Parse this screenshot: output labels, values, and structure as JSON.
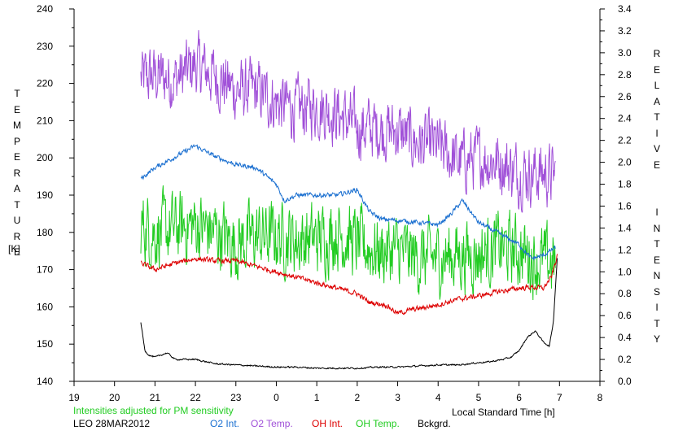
{
  "axes": {
    "left_label": "TEMPERATURE",
    "left_unit": "[K]",
    "right_label": "RELATIVE  INTENSITY",
    "x_label": "Local Standard Time [h]"
  },
  "footer": {
    "note": "Intensities adjusted for PM sensitivity",
    "station_date": "LEO 28MAR2012"
  },
  "legend": [
    {
      "label": "O2 Int.",
      "color": "#1a6fd0"
    },
    {
      "label": "O2 Temp.",
      "color": "#a050d8"
    },
    {
      "label": "OH Int.",
      "color": "#dd0000"
    },
    {
      "label": "OH Temp.",
      "color": "#22cc22"
    },
    {
      "label": "Bckgrd.",
      "color": "#000000"
    }
  ],
  "chart_data": {
    "type": "line",
    "x_ticks": [
      "19",
      "20",
      "21",
      "22",
      "23",
      "0",
      "1",
      "2",
      "3",
      "4",
      "5",
      "6",
      "7",
      "8"
    ],
    "y_left_ticks": [
      "140",
      "150",
      "160",
      "170",
      "180",
      "190",
      "200",
      "210",
      "220",
      "230",
      "240"
    ],
    "y_left_range": [
      140,
      240
    ],
    "y_right_ticks": [
      "0.0",
      "0.2",
      "0.4",
      "0.6",
      "0.8",
      "1.0",
      "1.2",
      "1.4",
      "1.6",
      "1.8",
      "2.0",
      "2.2",
      "2.4",
      "2.6",
      "2.8",
      "3.0",
      "3.2",
      "3.4"
    ],
    "y_right_range": [
      0.0,
      3.4
    ],
    "x_range_hours_since_19": [
      0,
      13
    ],
    "grid": false,
    "series": [
      {
        "name": "O2 Temp.",
        "axis": "left",
        "color": "#a050d8",
        "noise": 7,
        "x": [
          20.65,
          21,
          21.5,
          22,
          22.5,
          23,
          23.5,
          24,
          24.5,
          25,
          25.5,
          26,
          26.5,
          27,
          27.5,
          28,
          28.5,
          29,
          29.5,
          30,
          30.5,
          30.9
        ],
        "y": [
          221,
          222,
          221,
          225,
          222,
          218,
          218,
          215,
          213,
          214,
          212,
          208,
          208,
          207,
          204,
          203,
          199,
          200,
          199,
          196,
          196,
          195
        ]
      },
      {
        "name": "OH Temp.",
        "axis": "left",
        "color": "#22cc22",
        "noise": 8,
        "x": [
          20.65,
          21,
          21.5,
          22,
          22.5,
          23,
          23.5,
          24,
          24.5,
          25,
          25.5,
          26,
          26.5,
          27,
          27.5,
          28,
          28.5,
          29,
          29.5,
          30,
          30.5,
          30.9
        ],
        "y": [
          182,
          180,
          181,
          182,
          180,
          177,
          179,
          179,
          178,
          178,
          180,
          177,
          175,
          175,
          173,
          173,
          174,
          174,
          176,
          175,
          172,
          172
        ]
      },
      {
        "name": "O2 Int.",
        "axis": "right",
        "color": "#1a6fd0",
        "noise": 0.018,
        "x": [
          20.65,
          21,
          21.5,
          22,
          22.5,
          23,
          23.5,
          24,
          24.2,
          24.5,
          25,
          25.5,
          26,
          26.3,
          26.6,
          27,
          27.5,
          28,
          28.3,
          28.6,
          29,
          29.5,
          30,
          30.3,
          30.6,
          30.9
        ],
        "y": [
          1.85,
          1.95,
          2.05,
          2.15,
          2.05,
          1.98,
          1.95,
          1.8,
          1.65,
          1.7,
          1.7,
          1.7,
          1.75,
          1.55,
          1.48,
          1.47,
          1.45,
          1.43,
          1.52,
          1.65,
          1.45,
          1.35,
          1.25,
          1.12,
          1.15,
          1.22
        ]
      },
      {
        "name": "OH Int.",
        "axis": "right",
        "color": "#dd0000",
        "noise": 0.02,
        "x": [
          20.65,
          21,
          21.5,
          22,
          22.5,
          23,
          23.5,
          24,
          24.5,
          25,
          25.5,
          26,
          26.3,
          26.7,
          27,
          27.3,
          27.6,
          28,
          28.5,
          29,
          29.5,
          30,
          30.3,
          30.6,
          30.8,
          30.95
        ],
        "y": [
          1.08,
          1.02,
          1.08,
          1.12,
          1.1,
          1.1,
          1.05,
          1.0,
          0.95,
          0.9,
          0.85,
          0.8,
          0.72,
          0.7,
          0.62,
          0.65,
          0.67,
          0.7,
          0.75,
          0.78,
          0.82,
          0.85,
          0.86,
          0.85,
          0.95,
          1.15
        ]
      },
      {
        "name": "Bckgrd.",
        "axis": "right",
        "color": "#000000",
        "noise": 0.006,
        "x": [
          20.65,
          20.75,
          20.85,
          21,
          21.3,
          21.5,
          22,
          22.5,
          23,
          23.5,
          24,
          24.5,
          25,
          25.5,
          26,
          26.5,
          27,
          27.5,
          28,
          28.5,
          29,
          29.3,
          29.6,
          29.8,
          30,
          30.2,
          30.4,
          30.6,
          30.75,
          30.85,
          30.95
        ],
        "y": [
          0.54,
          0.28,
          0.24,
          0.22,
          0.26,
          0.2,
          0.2,
          0.16,
          0.15,
          0.14,
          0.13,
          0.13,
          0.12,
          0.12,
          0.12,
          0.13,
          0.13,
          0.14,
          0.15,
          0.15,
          0.17,
          0.18,
          0.2,
          0.22,
          0.28,
          0.4,
          0.46,
          0.36,
          0.32,
          0.55,
          1.15
        ]
      }
    ]
  }
}
